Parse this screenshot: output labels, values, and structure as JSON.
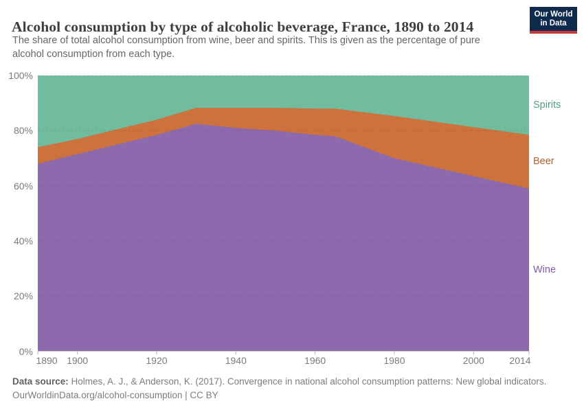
{
  "header": {
    "title": "Alcohol consumption by type of alcoholic beverage, France, 1890 to 2014",
    "subtitle": "The share of total alcohol consumption from wine, beer and spirits. This is given as the percentage of pure alcohol consumption from each type.",
    "logo": {
      "line1": "Our World",
      "line2": "in Data",
      "bg_color": "#0f2a4d",
      "accent_color": "#c73837"
    }
  },
  "chart_data": {
    "type": "area",
    "stacked": true,
    "normalized_percent": true,
    "title": "Alcohol consumption by type of alcoholic beverage, France, 1890 to 2014",
    "xlabel": "",
    "ylabel": "",
    "xlim": [
      1890,
      2014
    ],
    "ylim": [
      0,
      100
    ],
    "grid": "horizontal-dashed",
    "legend_position": "right-edge-labels",
    "x": [
      1890,
      1900,
      1910,
      1920,
      1930,
      1940,
      1950,
      1960,
      1965,
      1980,
      2000,
      2014
    ],
    "series": [
      {
        "name": "Wine",
        "fill_color": "#8d6aae",
        "label_color": "#8458a5",
        "values": [
          68,
          71.5,
          75,
          78.5,
          82.5,
          81,
          80,
          78.5,
          78,
          70,
          63.5,
          59
        ]
      },
      {
        "name": "Beer",
        "fill_color": "#cd723c",
        "label_color": "#be5a2b",
        "values": [
          6,
          5.5,
          5.5,
          5.5,
          5.8,
          7.3,
          8.3,
          9.5,
          10,
          15.3,
          17.8,
          19.5
        ]
      },
      {
        "name": "Spirits",
        "fill_color": "#71bc9e",
        "label_color": "#4da088",
        "values": [
          26,
          23,
          19.5,
          16,
          11.7,
          11.7,
          11.7,
          12,
          12,
          14.7,
          18.7,
          21.5
        ]
      }
    ],
    "x_ticks": [
      1890,
      1900,
      1920,
      1940,
      1960,
      1980,
      2000,
      2014
    ],
    "y_ticks": [
      0,
      20,
      40,
      60,
      80,
      100
    ],
    "y_tick_suffix": "%"
  },
  "footer": {
    "source_label": "Data source:",
    "source_text": " Holmes, A. J., & Anderson, K. (2017). Convergence in national alcohol consumption patterns: New global indicators.",
    "link_line": "OurWorldinData.org/alcohol-consumption | CC BY"
  }
}
